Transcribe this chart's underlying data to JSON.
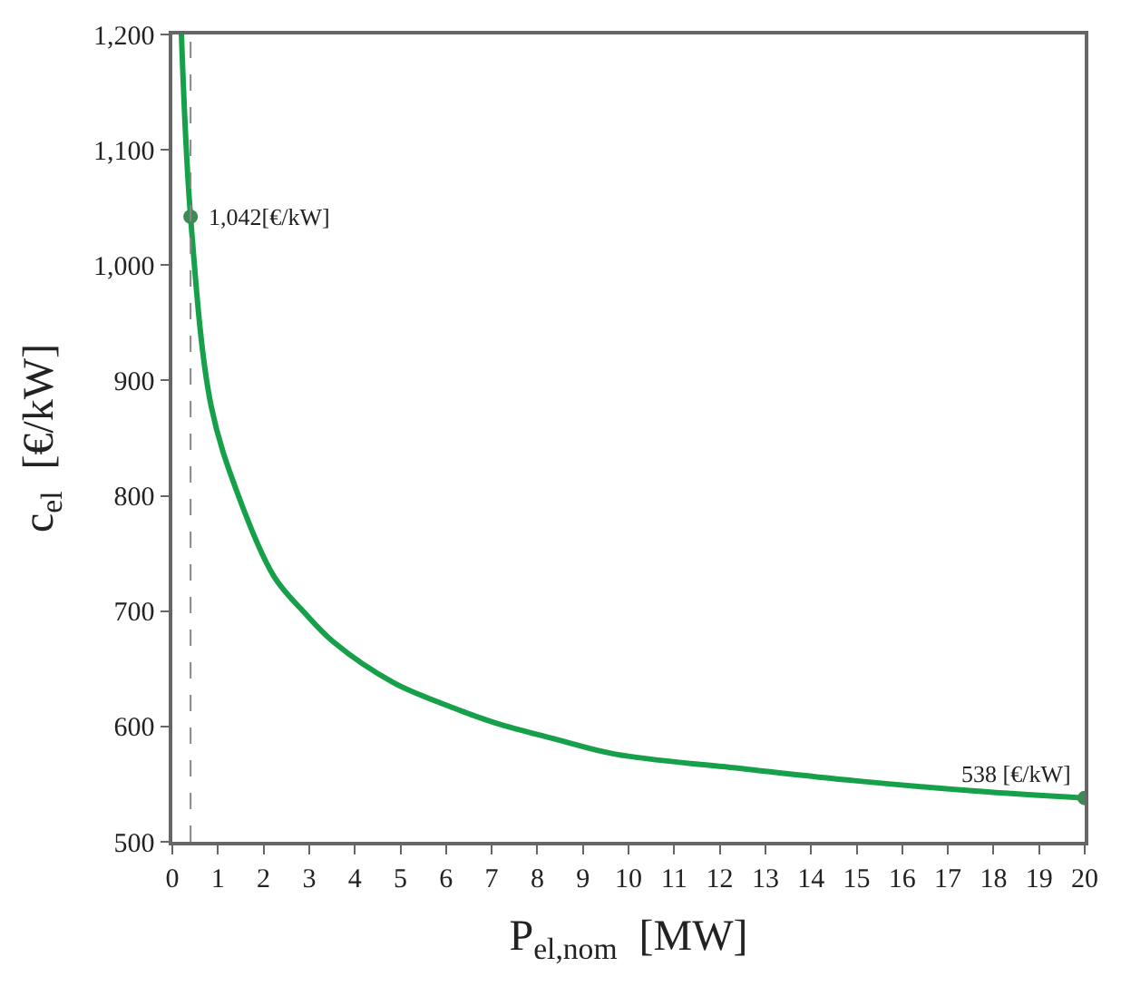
{
  "chart_data": {
    "type": "line",
    "xlabel": "P$_{el,nom}$  [MW]",
    "ylabel": "c$_{el}$  [€/kW]",
    "xlim": [
      0,
      20
    ],
    "xticks": [
      0,
      1,
      2,
      3,
      4,
      5,
      6,
      7,
      8,
      9,
      10,
      11,
      12,
      13,
      14,
      15,
      16,
      17,
      18,
      19,
      20
    ],
    "ylim": [
      500,
      1200
    ],
    "yticks": [
      {
        "value": 500,
        "label": "500"
      },
      {
        "value": 600,
        "label": "600"
      },
      {
        "value": 700,
        "label": "700"
      },
      {
        "value": 800,
        "label": "800"
      },
      {
        "value": 900,
        "label": "900"
      },
      {
        "value": 1000,
        "label": "1,000"
      },
      {
        "value": 1100,
        "label": "1,100"
      },
      {
        "value": 1200,
        "label": "1,200"
      }
    ],
    "marker": "none",
    "line_style": "solid",
    "series": [
      {
        "color": "#16a04a",
        "x": [
          0.2,
          0.4,
          0.85,
          1.44,
          2.23,
          2.89,
          3.54,
          4.85,
          6.17,
          7.09,
          8.4,
          9.71,
          12.6,
          14.96,
          17.6,
          20
        ],
        "values": [
          1200,
          1042,
          878,
          801,
          730,
          699,
          673,
          638,
          616,
          603,
          589,
          576,
          563,
          553,
          544,
          538
        ]
      },
      {
        "type": "scatter",
        "marker": "circle",
        "color": "#3d8a55",
        "x": [
          0.4,
          20
        ],
        "values": [
          1042,
          538
        ]
      }
    ],
    "ref_lines": [
      {
        "axis": "x",
        "value": 0.4,
        "color": "#888888",
        "line_style": "dashed"
      }
    ],
    "annotations": [
      {
        "text": "1,042[€/kW]",
        "x": 0.4,
        "y": 1042
      },
      {
        "text": "538 [€/kW]",
        "x": 20,
        "y": 538
      }
    ]
  }
}
